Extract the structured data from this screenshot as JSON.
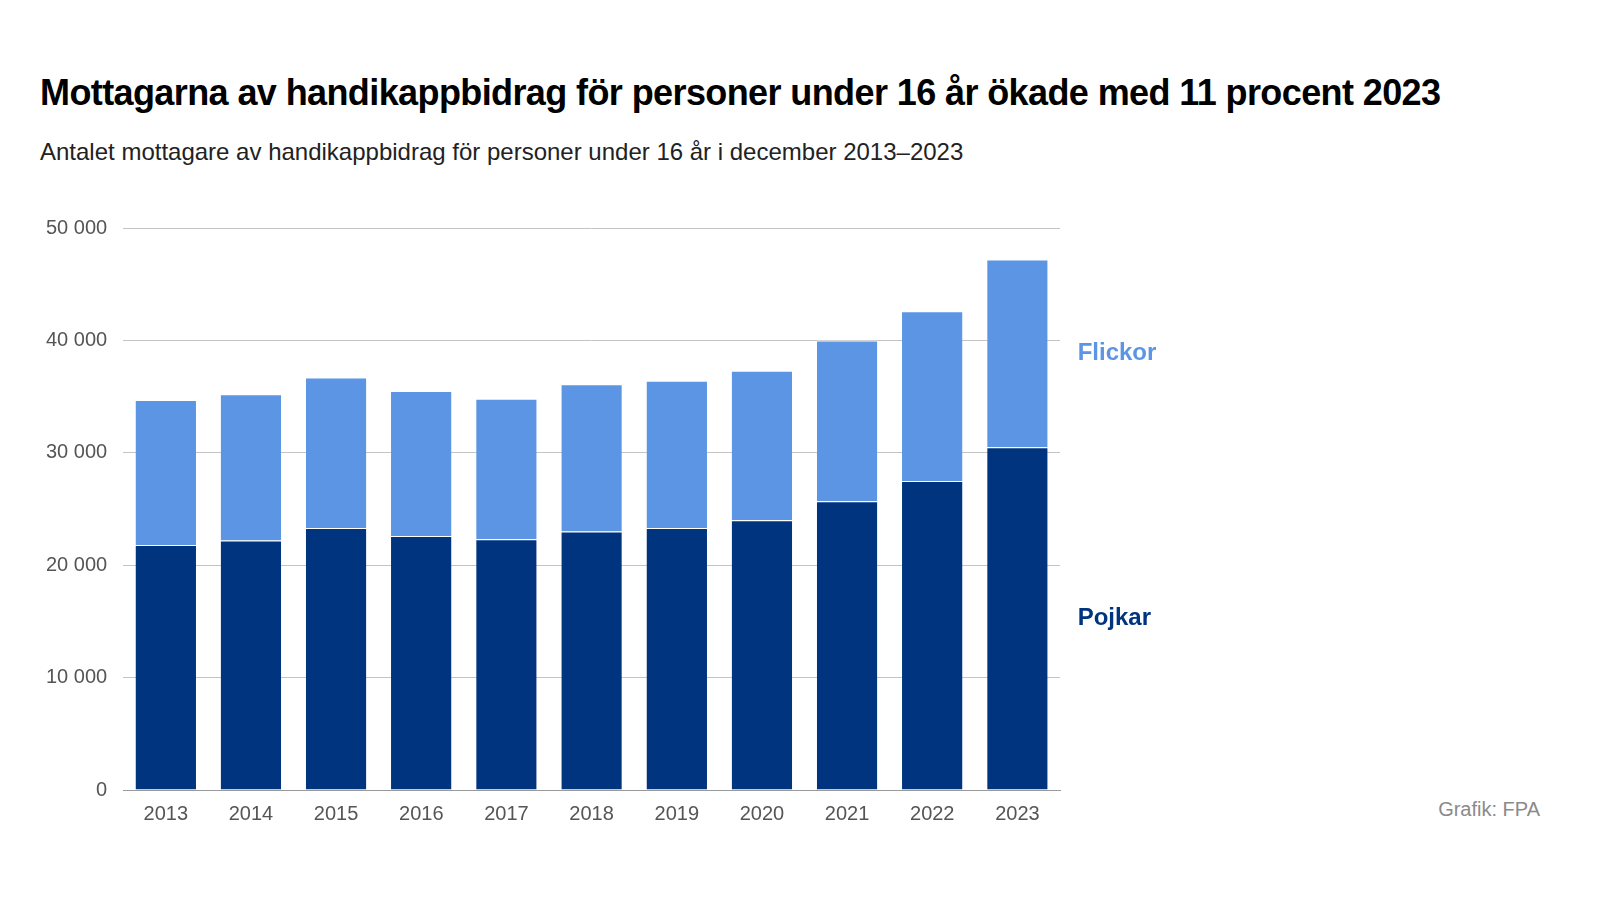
{
  "chart_data": {
    "type": "bar",
    "title": "Mottagarna av handikappbidrag för personer under 16 år ökade med 11 procent 2023",
    "subtitle": "Antalet mottagare av handikappbidrag för personer under 16 år i december 2013–2023",
    "source": "Grafik: FPA",
    "categories": [
      "2013",
      "2014",
      "2015",
      "2016",
      "2017",
      "2018",
      "2019",
      "2020",
      "2021",
      "2022",
      "2023"
    ],
    "series": [
      {
        "name": "Pojkar",
        "color": "#00347f",
        "values": [
          21800,
          22200,
          23300,
          22600,
          22300,
          23000,
          23300,
          24000,
          25700,
          27500,
          30500
        ]
      },
      {
        "name": "Flickor",
        "color": "#5b95e3",
        "values": [
          12900,
          13000,
          13400,
          12900,
          12500,
          13100,
          13100,
          13300,
          14300,
          15100,
          16700
        ]
      }
    ],
    "stacked": true,
    "legend": "right",
    "grid": true,
    "ylim": [
      0,
      50000
    ],
    "yticks": [
      0,
      {
        "value": 10000,
        "label": "10 000"
      },
      {
        "value": 20000,
        "label": "20 000"
      },
      {
        "value": 30000,
        "label": "30 000"
      },
      {
        "value": 40000,
        "label": "40 000"
      },
      {
        "value": 50000,
        "label": "50 000"
      }
    ]
  }
}
